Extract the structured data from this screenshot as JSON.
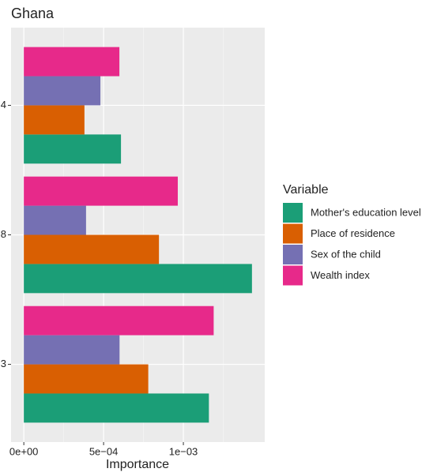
{
  "chart_data": {
    "type": "bar",
    "orientation": "horizontal",
    "title": "Ghana",
    "x_label": "Importance",
    "categories": [
      "4",
      "8",
      "3"
    ],
    "series": [
      {
        "name": "Mother's education level",
        "color": "#1b9e77",
        "values": [
          0.000609,
          0.00143,
          0.00116
        ]
      },
      {
        "name": "Place of residence",
        "color": "#d95f02",
        "values": [
          0.00038,
          0.000847,
          0.00078
        ]
      },
      {
        "name": "Sex of the child",
        "color": "#7570b3",
        "values": [
          0.00048,
          0.00039,
          0.0006
        ]
      },
      {
        "name": "Wealth index",
        "color": "#e7298a",
        "values": [
          0.000599,
          0.000965,
          0.00119
        ]
      }
    ],
    "legend_title": "Variable",
    "legend_position": "right",
    "xlim": [
      -8e-05,
      0.00151
    ],
    "xticks": [
      {
        "value": 0,
        "label": "0e+00"
      },
      {
        "value": 0.0005,
        "label": "5e−04"
      },
      {
        "value": 0.001,
        "label": "1e−03"
      }
    ],
    "grid": true
  }
}
